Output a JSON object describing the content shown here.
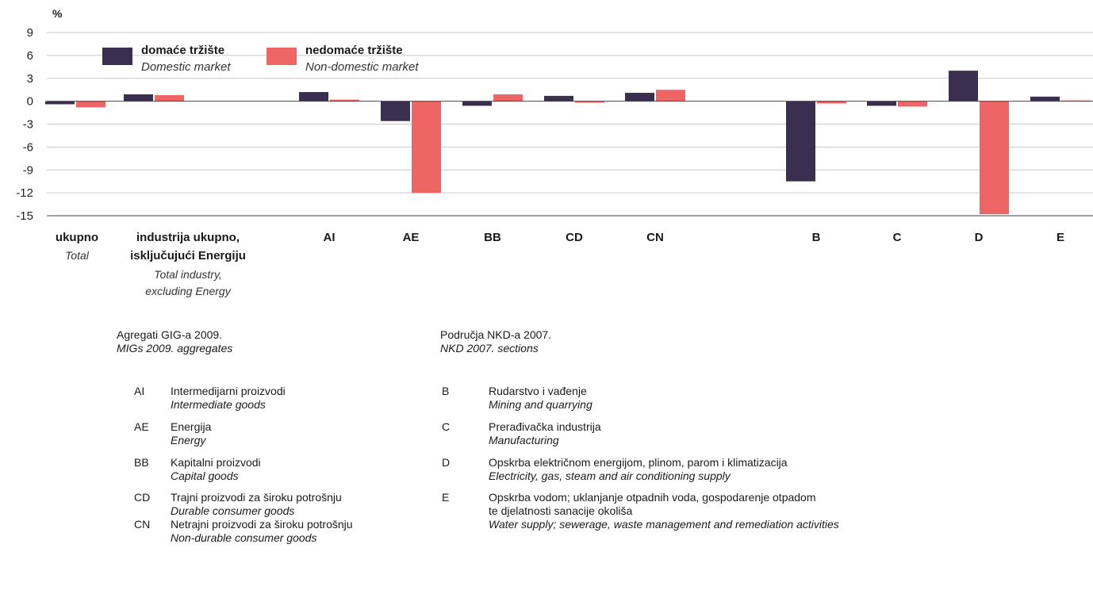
{
  "chart_data": {
    "type": "bar",
    "y_unit_label": "%",
    "ylim": [
      -15,
      9
    ],
    "yticks": [
      9,
      6,
      3,
      0,
      -3,
      -6,
      -9,
      -12,
      -15
    ],
    "categories": [
      "ukupno",
      "industrija ukupno, isključujući Energiju",
      "AI",
      "AE",
      "BB",
      "CD",
      "CN",
      "B",
      "C",
      "D",
      "E"
    ],
    "category_sublabels": {
      "ukupno": [
        "Total"
      ],
      "industrija ukupno, isključujući Energiju": [
        "Total industry,",
        "excluding Energy"
      ]
    },
    "series": [
      {
        "name": "domaće tržište",
        "name_en": "Domestic market",
        "color": "#3b2f4f",
        "values": [
          -0.4,
          0.9,
          1.2,
          -2.6,
          -0.6,
          0.7,
          1.1,
          -10.5,
          -0.6,
          4.0,
          0.6
        ]
      },
      {
        "name": "nedomaće tržište",
        "name_en": "Non-domestic market",
        "color": "#ee6565",
        "values": [
          -0.8,
          0.8,
          0.2,
          -12.0,
          0.9,
          -0.2,
          1.5,
          -0.3,
          -0.7,
          -14.8,
          0.1
        ]
      }
    ],
    "legend_position": "top-left"
  },
  "legend_labels": {
    "domestic_hr": "domaće tržište",
    "domestic_en": "Domestic market",
    "nondomestic_hr": "nedomaće tržište",
    "nondomestic_en": "Non-domestic market"
  },
  "category_labels": {
    "ukupno": "ukupno",
    "total": "Total",
    "industry_line1": "industrija ukupno,",
    "industry_line2": "isključujući Energiju",
    "industry_sub1": "Total industry,",
    "industry_sub2": "excluding Energy",
    "AI": "AI",
    "AE": "AE",
    "BB": "BB",
    "CD": "CD",
    "CN": "CN",
    "B": "B",
    "C": "C",
    "D": "D",
    "E": "E"
  },
  "aggregates": {
    "title": "Agregati GIG-a 2009.",
    "title_en": "MIGs 2009. aggregates",
    "items": [
      {
        "code": "AI",
        "hr": "Intermedijarni proizvodi",
        "en": "Intermediate goods"
      },
      {
        "code": "AE",
        "hr": "Energija",
        "en": "Energy"
      },
      {
        "code": "BB",
        "hr": "Kapitalni proizvodi",
        "en": "Capital goods"
      },
      {
        "code": "CD",
        "hr": "Trajni proizvodi za široku potrošnju",
        "en": "Durable consumer goods"
      },
      {
        "code": "CN",
        "hr": "Netrajni proizvodi za široku potrošnju",
        "en": "Non-durable consumer goods"
      }
    ]
  },
  "sections": {
    "title": "Područja NKD-a 2007.",
    "title_en": "NKD 2007. sections",
    "items": [
      {
        "code": "B",
        "hr": "Rudarstvo i vađenje",
        "en": "Mining and quarrying"
      },
      {
        "code": "C",
        "hr": "Prerađivačka industrija",
        "en": "Manufacturing"
      },
      {
        "code": "D",
        "hr": "Opskrba električnom energijom, plinom, parom i klimatizacija",
        "en": "Electricity, gas, steam and air conditioning supply"
      },
      {
        "code": "E",
        "hr": "Opskrba vodom; uklanjanje otpadnih voda, gospodarenje otpadom",
        "hr2": "te djelatnosti sanacije okoliša",
        "en": "Water supply; sewerage, waste management and remediation activities"
      }
    ]
  }
}
